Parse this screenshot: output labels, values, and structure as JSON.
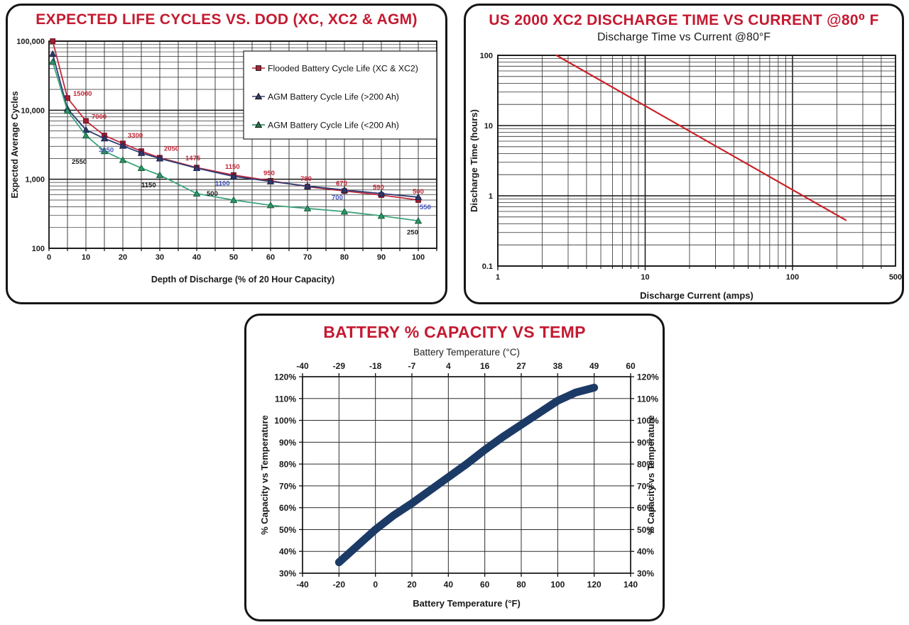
{
  "page": {
    "background": "#ffffff",
    "title_color": "#c41a31"
  },
  "chart_data": [
    {
      "type": "line",
      "panel_title": "EXPECTED LIFE CYCLES VS. DOD (XC, XC2 & AGM)",
      "xlabel": "Depth of Discharge (% of 20 Hour Capacity)",
      "ylabel": "Expected Average Cycles",
      "x_scale": "linear",
      "y_scale": "log",
      "xlim": [
        0,
        105
      ],
      "ylim": [
        100,
        100000
      ],
      "x_ticks": [
        0,
        10,
        20,
        30,
        40,
        50,
        60,
        70,
        80,
        90,
        100
      ],
      "x_minor_step": 5,
      "y_ticks": [
        {
          "value": 100000,
          "label": "100,000"
        },
        {
          "value": 10000,
          "label": "10,000"
        },
        {
          "value": 1000,
          "label": "1,000"
        },
        {
          "value": 100,
          "label": "100"
        }
      ],
      "legend": [
        {
          "label": "Flooded Battery Cycle Life (XC & XC2)",
          "marker": "square",
          "color": "#b02437"
        },
        {
          "label": "AGM Battery Cycle Life (>200 Ah)",
          "marker": "triangle",
          "color": "#33406e"
        },
        {
          "label": "AGM Battery Cycle Life (<200 Ah)",
          "marker": "triangle",
          "color": "#1f7a4d"
        }
      ],
      "series": [
        {
          "name": "Flooded Battery Cycle Life (XC & XC2)",
          "color": "#c22a3c",
          "marker": "square",
          "marker_fill": "#a01c31",
          "marker_stroke": "#6e0f20",
          "label_color": "#c42636",
          "points": [
            [
              1,
              100000
            ],
            [
              5,
              15000
            ],
            [
              10,
              7000
            ],
            [
              15,
              4300
            ],
            [
              20,
              3300
            ],
            [
              25,
              2550
            ],
            [
              30,
              2050
            ],
            [
              40,
              1475
            ],
            [
              50,
              1150
            ],
            [
              60,
              950
            ],
            [
              70,
              780
            ],
            [
              80,
              675
            ],
            [
              90,
              590
            ],
            [
              100,
              500
            ]
          ],
          "labels": [
            {
              "x": 5,
              "text": "15000",
              "dx": 8,
              "dy": -3
            },
            {
              "x": 10,
              "text": "7000",
              "dx": 8,
              "dy": -3
            },
            {
              "x": 20,
              "text": "3300",
              "dx": 7,
              "dy": -8
            },
            {
              "x": 30,
              "text": "2050",
              "dx": 6,
              "dy": -10
            },
            {
              "x": 40,
              "text": "1475",
              "dx": -16,
              "dy": -10
            },
            {
              "x": 50,
              "text": "1150",
              "dx": -12,
              "dy": -9
            },
            {
              "x": 60,
              "text": "950",
              "dx": -10,
              "dy": -8
            },
            {
              "x": 70,
              "text": "780",
              "dx": -10,
              "dy": -8
            },
            {
              "x": 80,
              "text": "675",
              "dx": -12,
              "dy": -8
            },
            {
              "x": 90,
              "text": "590",
              "dx": -12,
              "dy": -8
            },
            {
              "x": 100,
              "text": "500",
              "dx": -8,
              "dy": -9
            }
          ]
        },
        {
          "name": "AGM Battery Cycle Life (>200 Ah)",
          "color": "#2f3c74",
          "marker": "triangle",
          "marker_fill": "#2c3a6e",
          "marker_stroke": "#1b2548",
          "label_color": "#4355c0",
          "points": [
            [
              1,
              65000
            ],
            [
              5,
              10500
            ],
            [
              10,
              5200
            ],
            [
              15,
              3900
            ],
            [
              20,
              3050
            ],
            [
              25,
              2400
            ],
            [
              30,
              2000
            ],
            [
              40,
              1450
            ],
            [
              50,
              1100
            ],
            [
              60,
              930
            ],
            [
              70,
              795
            ],
            [
              80,
              700
            ],
            [
              90,
              620
            ],
            [
              100,
              550
            ]
          ],
          "labels": [
            {
              "x": 20,
              "text": "3050",
              "dx": -34,
              "dy": 9
            },
            {
              "x": 50,
              "text": "1100",
              "dx": -26,
              "dy": 13
            },
            {
              "x": 80,
              "text": "700",
              "dx": -18,
              "dy": 14
            },
            {
              "x": 100,
              "text": "550",
              "dx": 2,
              "dy": 17
            }
          ]
        },
        {
          "name": "AGM Battery Cycle Life (<200 Ah)",
          "color": "#3da47c",
          "marker": "triangle",
          "marker_fill": "#2f9468",
          "marker_stroke": "#125c37",
          "label_color": "#1c1c1c",
          "points": [
            [
              1,
              50000
            ],
            [
              5,
              9800
            ],
            [
              10,
              4300
            ],
            [
              15,
              2550
            ],
            [
              20,
              1900
            ],
            [
              25,
              1450
            ],
            [
              30,
              1150
            ],
            [
              40,
              620
            ],
            [
              50,
              500
            ],
            [
              60,
              420
            ],
            [
              70,
              378
            ],
            [
              80,
              340
            ],
            [
              90,
              295
            ],
            [
              100,
              250
            ]
          ],
          "labels": [
            {
              "x": 15,
              "text": "2550",
              "dx": -46,
              "dy": 18
            },
            {
              "x": 30,
              "text": "1150",
              "dx": -26,
              "dy": 17
            },
            {
              "x": 50,
              "text": "500",
              "dx": -38,
              "dy": -6
            },
            {
              "x": 100,
              "text": "250",
              "dx": -16,
              "dy": 19
            }
          ]
        }
      ]
    },
    {
      "type": "line",
      "panel_title": "US 2000 XC2 DISCHARGE TIME VS CURRENT @80⁰ F",
      "subtitle": "Discharge Time vs Current @80°F",
      "xlabel": "Discharge Current (amps)",
      "ylabel": "Discharge Time (hours)",
      "x_scale": "log",
      "y_scale": "log",
      "xlim": [
        1,
        500
      ],
      "ylim": [
        0.1,
        100
      ],
      "x_ticks": [
        {
          "value": 1,
          "label": "1"
        },
        {
          "value": 10,
          "label": "10"
        },
        {
          "value": 100,
          "label": "100"
        },
        {
          "value": 500,
          "label": "500"
        }
      ],
      "y_ticks": [
        {
          "value": 100,
          "label": "100"
        },
        {
          "value": 10,
          "label": "10"
        },
        {
          "value": 1,
          "label": "1"
        },
        {
          "value": 0.1,
          "label": "0.1"
        }
      ],
      "line_color": "#cc2127",
      "points": [
        [
          2.5,
          100
        ],
        [
          230,
          0.45
        ]
      ]
    },
    {
      "type": "line",
      "panel_title": "BATTERY % CAPACITY VS TEMP",
      "top_xlabel": "Battery Temperature (°C)",
      "bottom_xlabel": "Battery Temperature (°F)",
      "ylabel_left": "% Capacity vs Temperature",
      "ylabel_right": "% Capacity vs Temperature",
      "xlim": [
        -40,
        140
      ],
      "ylim": [
        30,
        120
      ],
      "x_ticks_f": [
        -40,
        -20,
        0,
        20,
        40,
        60,
        80,
        100,
        120,
        140
      ],
      "x_ticks_c": [
        "-40",
        "-29",
        "-18",
        "-7",
        "4",
        "16",
        "27",
        "38",
        "49",
        "60"
      ],
      "y_ticks": [
        {
          "value": 120,
          "label": "120%"
        },
        {
          "value": 110,
          "label": "110%"
        },
        {
          "value": 100,
          "label": "100%"
        },
        {
          "value": 90,
          "label": "90%"
        },
        {
          "value": 80,
          "label": "80%"
        },
        {
          "value": 70,
          "label": "70%"
        },
        {
          "value": 60,
          "label": "60%"
        },
        {
          "value": 50,
          "label": "50%"
        },
        {
          "value": 40,
          "label": "40%"
        },
        {
          "value": 30,
          "label": "30%"
        }
      ],
      "line_color": "#1c3a66",
      "points": [
        [
          -20,
          35
        ],
        [
          -10,
          42.5
        ],
        [
          0,
          50
        ],
        [
          10,
          56.5
        ],
        [
          20,
          62
        ],
        [
          30,
          68
        ],
        [
          40,
          74
        ],
        [
          50,
          80
        ],
        [
          60,
          86.5
        ],
        [
          70,
          92.5
        ],
        [
          80,
          98
        ],
        [
          90,
          103.5
        ],
        [
          100,
          109
        ],
        [
          110,
          112.8
        ],
        [
          120,
          115
        ]
      ]
    }
  ]
}
